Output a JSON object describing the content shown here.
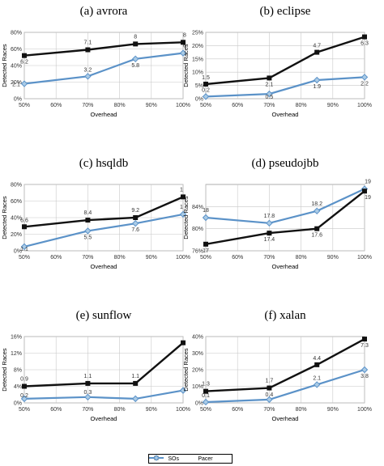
{
  "legend": {
    "sos": "SOs",
    "pacer": "Pacer"
  },
  "colors": {
    "sos": "#111111",
    "pacer": "#5b92c8",
    "grid": "#c8c8c8",
    "plot_border": "#9a9a9a"
  },
  "chart_data": [
    {
      "type": "line",
      "title": "(a) avrora",
      "xlabel": "Overhead",
      "ylabel": "Detected Races",
      "x": [
        50,
        70,
        85,
        100
      ],
      "xticks": [
        "50%",
        "60%",
        "70%",
        "80%",
        "90%",
        "100%"
      ],
      "xtick_values": [
        50,
        60,
        70,
        80,
        90,
        100
      ],
      "xlim": [
        50,
        100
      ],
      "ylim": [
        0,
        80
      ],
      "yticks": [
        "0%",
        "20%",
        "40%",
        "60%",
        "80%"
      ],
      "ytick_values": [
        0,
        20,
        40,
        60,
        80
      ],
      "series": [
        {
          "name": "SOs",
          "values": [
            52,
            59,
            66,
            68
          ],
          "labels": [
            "6.2",
            "7.1",
            "8",
            "8"
          ]
        },
        {
          "name": "Pacer",
          "values": [
            18,
            27,
            48,
            55
          ],
          "labels": [
            "2.1",
            "3.2",
            "5.8",
            "6"
          ]
        }
      ]
    },
    {
      "type": "line",
      "title": "(b) eclipse",
      "xlabel": "Overhead",
      "ylabel": "Detected Races",
      "x": [
        50,
        70,
        85,
        100
      ],
      "xticks": [
        "50%",
        "60%",
        "70%",
        "80%",
        "90%",
        "100%"
      ],
      "xtick_values": [
        50,
        60,
        70,
        80,
        90,
        100
      ],
      "xlim": [
        50,
        100
      ],
      "ylim": [
        0,
        25
      ],
      "yticks": [
        "0%",
        "5%",
        "10%",
        "15%",
        "20%",
        "25%"
      ],
      "ytick_values": [
        0,
        5,
        10,
        15,
        20,
        25
      ],
      "series": [
        {
          "name": "SOs",
          "values": [
            5.5,
            7.8,
            17.5,
            23.3
          ],
          "labels": [
            "1.5",
            "2.1",
            "4.7",
            "6.3"
          ]
        },
        {
          "name": "Pacer",
          "values": [
            0.8,
            1.8,
            7,
            8.1
          ],
          "labels": [
            "0.2",
            "0.5",
            "1.9",
            "2.2"
          ]
        }
      ]
    },
    {
      "type": "line",
      "title": "(c) hsqldb",
      "xlabel": "Overhead",
      "ylabel": "Detected Races",
      "x": [
        50,
        70,
        85,
        100
      ],
      "xticks": [
        "50%",
        "60%",
        "70%",
        "80%",
        "90%",
        "100%"
      ],
      "xtick_values": [
        50,
        60,
        70,
        80,
        90,
        100
      ],
      "xlim": [
        50,
        100
      ],
      "ylim": [
        0,
        80
      ],
      "yticks": [
        "0%",
        "20%",
        "40%",
        "60%",
        "80%"
      ],
      "ytick_values": [
        0,
        20,
        40,
        60,
        80
      ],
      "series": [
        {
          "name": "SOs",
          "values": [
            29,
            37,
            40,
            65
          ],
          "labels": [
            "6.6",
            "8.4",
            "9.2",
            "1"
          ]
        },
        {
          "name": "Pacer",
          "values": [
            5,
            24,
            33,
            44
          ],
          "labels": [
            "1.1",
            "5.5",
            "7.6",
            "1"
          ]
        }
      ]
    },
    {
      "type": "line",
      "title": "(d) pseudojbb",
      "xlabel": "Overhead",
      "ylabel": "Detected Races",
      "x": [
        50,
        70,
        85,
        100
      ],
      "xticks": [
        "50%",
        "60%",
        "70%",
        "80%",
        "90%",
        "100%"
      ],
      "xtick_values": [
        50,
        60,
        70,
        80,
        90,
        100
      ],
      "xlim": [
        50,
        100
      ],
      "ylim": [
        76,
        88
      ],
      "yticks": [
        "76%",
        "80%",
        "84%"
      ],
      "ytick_values": [
        76,
        80,
        84
      ],
      "series": [
        {
          "name": "SOs",
          "values": [
            77.2,
            79.2,
            80,
            86.8
          ],
          "labels": [
            "17",
            "17.4",
            "17.6",
            "19"
          ]
        },
        {
          "name": "Pacer",
          "values": [
            82,
            81,
            83.2,
            87.2
          ],
          "labels": [
            "18",
            "17.8",
            "18.2",
            "19"
          ]
        }
      ]
    },
    {
      "type": "line",
      "title": "(e) sunflow",
      "xlabel": "Overhead",
      "ylabel": "Detected Races",
      "x": [
        50,
        70,
        85,
        100
      ],
      "xticks": [
        "50%",
        "60%",
        "70%",
        "80%",
        "90%",
        "100%"
      ],
      "xtick_values": [
        50,
        60,
        70,
        80,
        90,
        100
      ],
      "xlim": [
        50,
        100
      ],
      "ylim": [
        0,
        16
      ],
      "yticks": [
        "0%",
        "4%",
        "8%",
        "12%",
        "16%"
      ],
      "ytick_values": [
        0,
        4,
        8,
        12,
        16
      ],
      "series": [
        {
          "name": "SOs",
          "values": [
            4,
            4.7,
            4.7,
            14.5
          ],
          "labels": [
            "0.9",
            "1.1",
            "1.1",
            ""
          ]
        },
        {
          "name": "Pacer",
          "values": [
            1,
            1.4,
            1,
            3
          ],
          "labels": [
            "0.2",
            "0.3",
            "",
            ""
          ]
        }
      ]
    },
    {
      "type": "line",
      "title": "(f) xalan",
      "xlabel": "Overhead",
      "ylabel": "Detected Races",
      "x": [
        50,
        70,
        85,
        100
      ],
      "xticks": [
        "50%",
        "60%",
        "70%",
        "80%",
        "90%",
        "100%"
      ],
      "xtick_values": [
        50,
        60,
        70,
        80,
        90,
        100
      ],
      "xlim": [
        50,
        100
      ],
      "ylim": [
        0,
        40
      ],
      "yticks": [
        "0%",
        "10%",
        "20%",
        "30%",
        "40%"
      ],
      "ytick_values": [
        0,
        10,
        20,
        30,
        40
      ],
      "series": [
        {
          "name": "SOs",
          "values": [
            7,
            9,
            23,
            38.5
          ],
          "labels": [
            "1.3",
            "1.7",
            "4.4",
            "7.3"
          ]
        },
        {
          "name": "Pacer",
          "values": [
            0.5,
            2,
            11,
            20
          ],
          "labels": [
            "0.1",
            "0.4",
            "2.1",
            "3.8"
          ]
        }
      ]
    }
  ]
}
